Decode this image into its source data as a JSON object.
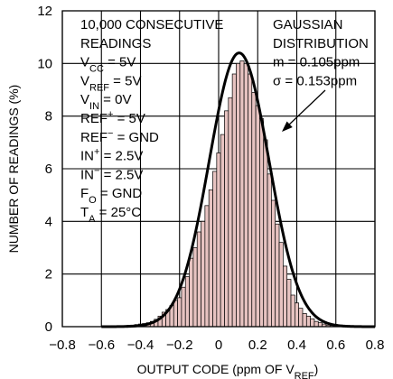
{
  "chart_data": {
    "type": "bar",
    "xlabel": "OUTPUT CODE (ppm OF V",
    "xlabel_sub": "REF",
    "xlabel_end": ")",
    "ylabel": "NUMBER OF READINGS (%)",
    "xlim": [
      -0.8,
      0.8
    ],
    "ylim": [
      0,
      12
    ],
    "x_ticks": [
      "−0.8",
      "−0.6",
      "−0.4",
      "−0.2",
      "0",
      "0.2",
      "0.4",
      "0.6",
      "0.8"
    ],
    "y_ticks": [
      "0",
      "2",
      "4",
      "6",
      "8",
      "10",
      "12"
    ],
    "grid": true,
    "histogram": {
      "bin_width": 0.02,
      "bins": [
        {
          "x": -0.54,
          "y": 0.04
        },
        {
          "x": -0.52,
          "y": 0.02
        },
        {
          "x": -0.5,
          "y": 0.03
        },
        {
          "x": -0.48,
          "y": 0.04
        },
        {
          "x": -0.46,
          "y": 0.05
        },
        {
          "x": -0.44,
          "y": 0.06
        },
        {
          "x": -0.42,
          "y": 0.08
        },
        {
          "x": -0.4,
          "y": 0.1
        },
        {
          "x": -0.38,
          "y": 0.12
        },
        {
          "x": -0.36,
          "y": 0.15
        },
        {
          "x": -0.34,
          "y": 0.2
        },
        {
          "x": -0.32,
          "y": 0.28
        },
        {
          "x": -0.3,
          "y": 0.4
        },
        {
          "x": -0.28,
          "y": 0.55
        },
        {
          "x": -0.26,
          "y": 0.65
        },
        {
          "x": -0.24,
          "y": 0.8
        },
        {
          "x": -0.22,
          "y": 1.0
        },
        {
          "x": -0.2,
          "y": 1.1
        },
        {
          "x": -0.18,
          "y": 1.5
        },
        {
          "x": -0.16,
          "y": 1.9
        },
        {
          "x": -0.14,
          "y": 2.6
        },
        {
          "x": -0.12,
          "y": 3.0
        },
        {
          "x": -0.1,
          "y": 3.6
        },
        {
          "x": -0.08,
          "y": 4.0
        },
        {
          "x": -0.06,
          "y": 4.6
        },
        {
          "x": -0.04,
          "y": 5.2
        },
        {
          "x": -0.02,
          "y": 5.9
        },
        {
          "x": 0.0,
          "y": 6.6
        },
        {
          "x": 0.02,
          "y": 7.3
        },
        {
          "x": 0.04,
          "y": 8.2
        },
        {
          "x": 0.06,
          "y": 8.7
        },
        {
          "x": 0.08,
          "y": 9.6
        },
        {
          "x": 0.1,
          "y": 10.0
        },
        {
          "x": 0.12,
          "y": 10.1
        },
        {
          "x": 0.14,
          "y": 10.0
        },
        {
          "x": 0.16,
          "y": 9.6
        },
        {
          "x": 0.18,
          "y": 8.9
        },
        {
          "x": 0.2,
          "y": 8.4
        },
        {
          "x": 0.22,
          "y": 7.9
        },
        {
          "x": 0.24,
          "y": 7.1
        },
        {
          "x": 0.26,
          "y": 5.8
        },
        {
          "x": 0.28,
          "y": 4.8
        },
        {
          "x": 0.3,
          "y": 3.9
        },
        {
          "x": 0.32,
          "y": 3.2
        },
        {
          "x": 0.34,
          "y": 2.3
        },
        {
          "x": 0.36,
          "y": 1.8
        },
        {
          "x": 0.38,
          "y": 1.2
        },
        {
          "x": 0.4,
          "y": 0.9
        },
        {
          "x": 0.42,
          "y": 0.7
        },
        {
          "x": 0.44,
          "y": 0.5
        },
        {
          "x": 0.46,
          "y": 0.4
        },
        {
          "x": 0.48,
          "y": 0.3
        },
        {
          "x": 0.5,
          "y": 0.2
        },
        {
          "x": 0.52,
          "y": 0.15
        },
        {
          "x": 0.54,
          "y": 0.1
        },
        {
          "x": 0.56,
          "y": 0.06
        },
        {
          "x": 0.58,
          "y": 0.04
        }
      ]
    },
    "fit": {
      "type": "gaussian",
      "mean": 0.105,
      "sigma": 0.153,
      "peak": 10.4
    },
    "annotations": {
      "left": [
        [
          {
            "t": "10,000 CONSECUTIVE"
          }
        ],
        [
          {
            "t": "READINGS"
          }
        ],
        [
          {
            "t": "V"
          },
          {
            "t": "CC",
            "sub": true
          },
          {
            "t": " = 5V"
          }
        ],
        [
          {
            "t": "V"
          },
          {
            "t": "REF",
            "sub": true
          },
          {
            "t": " = 5V"
          }
        ],
        [
          {
            "t": "V"
          },
          {
            "t": "IN",
            "sub": true
          },
          {
            "t": " = 0V"
          }
        ],
        [
          {
            "t": "REF"
          },
          {
            "t": "+",
            "sup": true
          },
          {
            "t": " = 5V"
          }
        ],
        [
          {
            "t": "REF"
          },
          {
            "t": "−",
            "sup": true
          },
          {
            "t": " = GND"
          }
        ],
        [
          {
            "t": "IN"
          },
          {
            "t": "+",
            "sup": true
          },
          {
            "t": " = 2.5V"
          }
        ],
        [
          {
            "t": "IN"
          },
          {
            "t": "−",
            "sup": true
          },
          {
            "t": " = 2.5V"
          }
        ],
        [
          {
            "t": "F"
          },
          {
            "t": "O",
            "sub": true
          },
          {
            "t": " = GND"
          }
        ],
        [
          {
            "t": "T"
          },
          {
            "t": "A",
            "sub": true
          },
          {
            "t": " = 25°C"
          }
        ]
      ],
      "right": [
        [
          {
            "t": "GAUSSIAN"
          }
        ],
        [
          {
            "t": "DISTRIBUTION"
          }
        ],
        [
          {
            "t": "m = 0.105ppm"
          }
        ],
        [
          {
            "t": "σ = 0.153ppm"
          }
        ]
      ]
    }
  }
}
